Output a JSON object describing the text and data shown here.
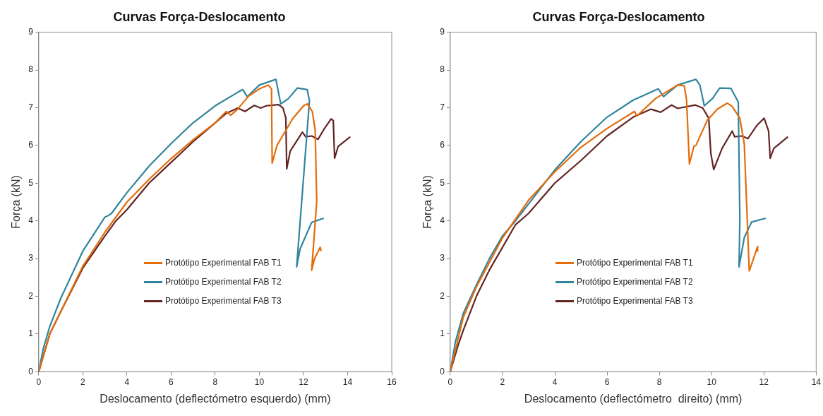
{
  "chart_data": [
    {
      "type": "line",
      "title": "Curvas Força-Deslocamento",
      "xlabel": "Deslocamento (deflectómetro esquerdo) (mm)",
      "ylabel": "Força (kN)",
      "xlim": [
        0,
        16
      ],
      "xticks": [
        0,
        2,
        4,
        6,
        8,
        10,
        12,
        14,
        16
      ],
      "ylim": [
        0,
        9
      ],
      "yticks": [
        0,
        1,
        2,
        3,
        4,
        5,
        6,
        7,
        8,
        9
      ],
      "grid": false,
      "legend": "bottom center",
      "marker": "none",
      "line_style": "solid",
      "series": [
        {
          "name": "Protótipo Experimental FAB T1",
          "color": "#e46c0a",
          "x": [
            0,
            0.5,
            1,
            2,
            3,
            4,
            5,
            6,
            7,
            8,
            8.5,
            8.7,
            9,
            9.5,
            10,
            10.4,
            10.55,
            10.58,
            10.8,
            11,
            11.5,
            12,
            12.18,
            12.4,
            12.53,
            12.6,
            12.37,
            12.5,
            12.76,
            12.8
          ],
          "values": [
            0,
            1.0,
            1.6,
            2.8,
            3.7,
            4.5,
            5.1,
            5.65,
            6.15,
            6.6,
            6.9,
            6.8,
            6.95,
            7.3,
            7.5,
            7.6,
            7.5,
            5.53,
            6.0,
            6.2,
            6.7,
            7.05,
            7.1,
            6.9,
            6.4,
            4.5,
            2.69,
            3.0,
            3.3,
            3.2
          ]
        },
        {
          "name": "Protótipo Experimental FAB T2",
          "color": "#31859c",
          "x": [
            0,
            0.2,
            0.5,
            1,
            2,
            3,
            3.18,
            3.3,
            4,
            5,
            6,
            7,
            8,
            9,
            9.25,
            9.45,
            10,
            10.75,
            10.97,
            11.3,
            11.72,
            12.17,
            12.27,
            11.69,
            11.85,
            12.37,
            12.92
          ],
          "values": [
            0,
            0.6,
            1.2,
            1.95,
            3.2,
            4.1,
            4.15,
            4.2,
            4.75,
            5.45,
            6.05,
            6.6,
            7.05,
            7.4,
            7.48,
            7.29,
            7.6,
            7.75,
            7.1,
            7.23,
            7.52,
            7.48,
            7.18,
            2.78,
            3.26,
            3.96,
            4.07
          ]
        },
        {
          "name": "Protótipo Experimental FAB T3",
          "color": "#632523",
          "x": [
            0,
            0.5,
            1,
            2,
            3,
            3.5,
            4,
            5,
            6,
            7,
            8,
            8.5,
            9.02,
            9.35,
            9.77,
            10.06,
            10.32,
            10.87,
            11.07,
            11.2,
            11.24,
            11.4,
            11.95,
            12.1,
            12.37,
            12.66,
            12.92,
            13.25,
            13.35,
            13.41,
            13.57,
            14.12
          ],
          "values": [
            0,
            1.0,
            1.6,
            2.75,
            3.6,
            4.0,
            4.3,
            5.0,
            5.55,
            6.1,
            6.6,
            6.85,
            6.99,
            6.9,
            7.06,
            6.99,
            7.05,
            7.08,
            6.99,
            6.73,
            5.38,
            5.85,
            6.35,
            6.23,
            6.25,
            6.16,
            6.42,
            6.7,
            6.66,
            5.66,
            5.97,
            6.23
          ]
        }
      ]
    },
    {
      "type": "line",
      "title": "Curvas Força-Deslocamento",
      "xlabel": "Deslocamento (deflectómetro  direito) (mm)",
      "ylabel": "Força (kN)",
      "xlim": [
        0,
        14
      ],
      "xticks": [
        0,
        2,
        4,
        6,
        8,
        10,
        12,
        14
      ],
      "ylim": [
        0,
        9
      ],
      "yticks": [
        0,
        1,
        2,
        3,
        4,
        5,
        6,
        7,
        8,
        9
      ],
      "grid": false,
      "legend": "bottom center",
      "marker": "none",
      "line_style": "solid",
      "series": [
        {
          "name": "Protótipo Experimental FAB T1",
          "color": "#e46c0a",
          "x": [
            0,
            0.5,
            1,
            2,
            3,
            4,
            5,
            6,
            7.05,
            7.14,
            7.85,
            8.7,
            8.95,
            9.04,
            9.15,
            9.32,
            9.4,
            9.83,
            10.22,
            10.6,
            10.79,
            11.08,
            11.25,
            11.44,
            11.76,
            11.76
          ],
          "values": [
            0,
            1.45,
            2.25,
            3.55,
            4.55,
            5.3,
            5.95,
            6.45,
            6.9,
            6.78,
            7.24,
            7.6,
            7.58,
            7.22,
            5.51,
            5.97,
            6.0,
            6.66,
            6.96,
            7.12,
            7.03,
            6.72,
            6.04,
            2.67,
            3.32,
            3.2
          ]
        },
        {
          "name": "Protótipo Experimental FAB T2",
          "color": "#31859c",
          "x": [
            0,
            0.2,
            0.5,
            1,
            1.5,
            2,
            2.5,
            2.66,
            3,
            4,
            5,
            6,
            7,
            7.96,
            8.16,
            8.7,
            9.4,
            9.55,
            9.72,
            10.03,
            10.31,
            10.74,
            11.02,
            11.08,
            11.05,
            11.25,
            11.53,
            12.07
          ],
          "values": [
            0,
            0.8,
            1.55,
            2.3,
            3.0,
            3.6,
            4.0,
            4.15,
            4.45,
            5.35,
            6.1,
            6.75,
            7.2,
            7.5,
            7.29,
            7.6,
            7.75,
            7.6,
            7.05,
            7.24,
            7.52,
            7.51,
            7.15,
            4.06,
            2.78,
            3.56,
            3.97,
            4.07
          ]
        },
        {
          "name": "Protótipo Experimental FAB T3",
          "color": "#632523",
          "x": [
            0,
            0.3,
            0.5,
            1,
            1.5,
            2,
            2.5,
            3,
            4,
            5,
            6,
            7,
            7.68,
            8.05,
            8.47,
            8.7,
            9.38,
            9.66,
            9.89,
            9.97,
            10.08,
            10.4,
            10.79,
            10.88,
            11.16,
            11.39,
            11.73,
            12.01,
            12.18,
            12.24,
            12.38,
            12.92
          ],
          "values": [
            0,
            0.7,
            1.1,
            2.0,
            2.7,
            3.3,
            3.9,
            4.2,
            5.0,
            5.6,
            6.25,
            6.75,
            6.96,
            6.88,
            7.07,
            6.98,
            7.07,
            6.99,
            6.72,
            5.79,
            5.36,
            5.92,
            6.38,
            6.23,
            6.25,
            6.18,
            6.53,
            6.72,
            6.38,
            5.66,
            5.92,
            6.23
          ]
        }
      ]
    }
  ]
}
